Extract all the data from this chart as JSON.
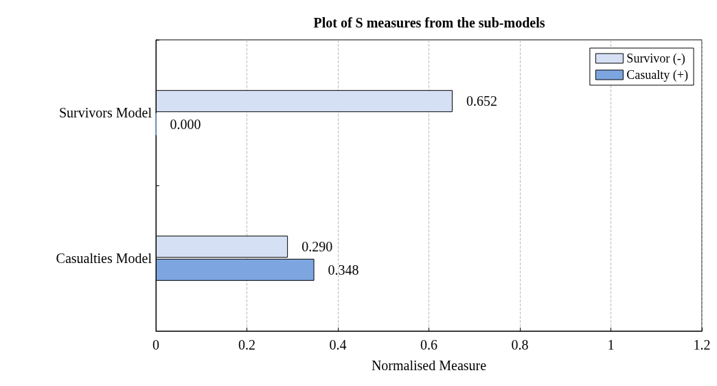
{
  "chart_data": {
    "type": "bar",
    "orientation": "horizontal",
    "title": "Plot of S measures from the sub-models",
    "xlabel": "Normalised Measure",
    "categories": [
      "Survivors Model",
      "Casualties Model"
    ],
    "series": [
      {
        "name": "Survivor (-)",
        "color": "#d5e0f5",
        "values": [
          0.652,
          0.29
        ],
        "value_labels": [
          "0.652",
          "0.290"
        ]
      },
      {
        "name": "Casualty (+)",
        "color": "#7da6e0",
        "values": [
          0,
          0.348
        ],
        "value_labels": [
          "0.000",
          "0.348"
        ]
      }
    ],
    "xlim": [
      0,
      1.2
    ],
    "xticks": [
      0,
      0.2,
      0.4,
      0.6,
      0.8,
      1,
      1.2
    ],
    "grid": "x",
    "legend": "top right"
  }
}
